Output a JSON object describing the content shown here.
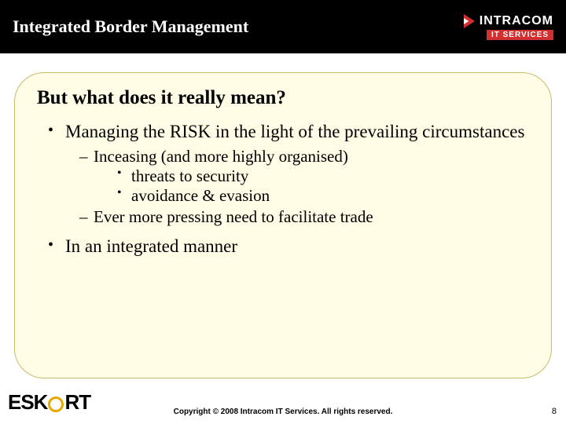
{
  "header": {
    "title": "Integrated Border Management",
    "logo": {
      "name": "INTRACOM",
      "sub": "IT SERVICES"
    }
  },
  "box": {
    "title": "But what does it really mean?",
    "bullets": [
      {
        "text": "Managing the RISK in the light of the prevailing circumstances",
        "sub": [
          {
            "text": "Inceasing (and more highly organised)",
            "sub": [
              {
                "text": "threats to security"
              },
              {
                "text": "avoidance & evasion"
              }
            ]
          },
          {
            "text": "Ever more pressing need to facilitate trade"
          }
        ]
      },
      {
        "text": "In an integrated manner"
      }
    ]
  },
  "footer": {
    "eskort_pre": "ESK",
    "eskort_post": "RT",
    "copyright": "Copyright © 2008 Intracom IT Services. All rights reserved.",
    "page": "8"
  },
  "colors": {
    "header_bg": "#000000",
    "box_bg": "#fffde6",
    "box_border": "#c9b96b",
    "accent_red": "#d32f2f",
    "accent_gold": "#e6a800"
  }
}
